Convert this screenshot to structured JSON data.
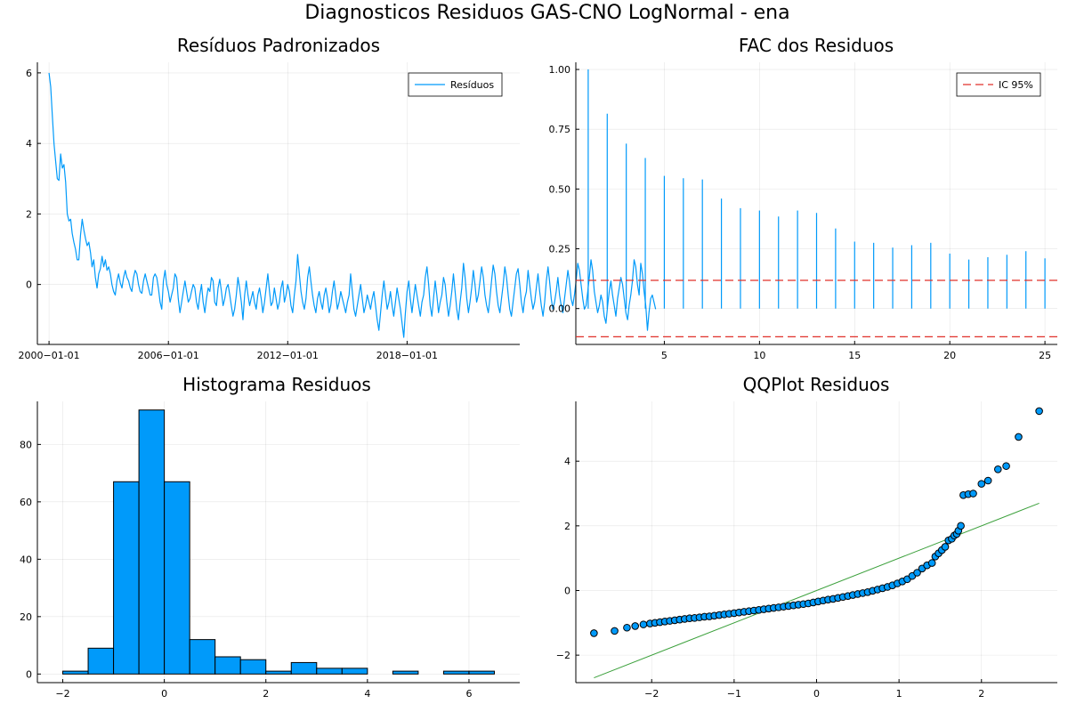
{
  "suptitle": "Diagnosticos Residuos  GAS-CNO LogNormal - ena",
  "chart_data": [
    {
      "id": "residuals",
      "type": "line",
      "title": "Resíduos Padronizados",
      "xlabel": "",
      "ylabel": "",
      "grid": true,
      "legend": "top-right",
      "xticks": [
        "2000-01-01",
        "2006-01-01",
        "2012-01-01",
        "2018-01-01"
      ],
      "yticks": [
        0,
        2,
        4,
        6
      ],
      "xlim": [
        "1999-06-01",
        "2023-09-01"
      ],
      "ylim": [
        -1.7,
        6.3
      ],
      "series": [
        {
          "name": "Resíduos",
          "color": "#009AFA",
          "start": "2000-01-01",
          "freq": "monthly",
          "values": [
            6.0,
            5.6,
            4.8,
            4.0,
            3.5,
            3.0,
            2.95,
            3.7,
            3.3,
            3.4,
            2.9,
            2.0,
            1.8,
            1.85,
            1.45,
            1.2,
            1.0,
            0.7,
            0.7,
            1.4,
            1.85,
            1.55,
            1.3,
            1.1,
            1.2,
            0.9,
            0.5,
            0.7,
            0.2,
            -0.1,
            0.3,
            0.45,
            0.8,
            0.5,
            0.7,
            0.4,
            0.5,
            0.3,
            0.0,
            -0.2,
            -0.3,
            0.1,
            0.3,
            0.05,
            -0.1,
            0.2,
            0.4,
            0.2,
            0.1,
            -0.1,
            -0.2,
            0.2,
            0.4,
            0.3,
            0.0,
            -0.2,
            -0.25,
            0.1,
            0.3,
            0.1,
            -0.1,
            -0.3,
            -0.3,
            0.2,
            0.3,
            0.2,
            -0.1,
            -0.5,
            -0.7,
            0.1,
            0.4,
            0.0,
            -0.2,
            -0.5,
            -0.3,
            -0.1,
            0.3,
            0.2,
            -0.4,
            -0.8,
            -0.5,
            -0.2,
            0.1,
            -0.2,
            -0.5,
            -0.4,
            -0.2,
            0.0,
            -0.1,
            -0.5,
            -0.7,
            -0.3,
            0.0,
            -0.5,
            -0.8,
            -0.4,
            -0.1,
            -0.2,
            0.2,
            0.1,
            -0.5,
            -0.6,
            -0.1,
            0.15,
            -0.2,
            -0.6,
            -0.4,
            -0.1,
            0.0,
            -0.3,
            -0.6,
            -0.9,
            -0.7,
            -0.3,
            0.2,
            -0.1,
            -0.5,
            -1.0,
            -0.3,
            0.1,
            -0.3,
            -0.6,
            -0.4,
            -0.2,
            -0.5,
            -0.7,
            -0.3,
            -0.1,
            -0.4,
            -0.8,
            -0.5,
            -0.1,
            0.3,
            -0.2,
            -0.6,
            -0.5,
            -0.1,
            -0.4,
            -0.7,
            -0.5,
            -0.1,
            0.1,
            -0.5,
            -0.3,
            0.0,
            -0.2,
            -0.6,
            -0.8,
            -0.3,
            0.1,
            0.85,
            0.3,
            -0.2,
            -0.5,
            -0.7,
            -0.4,
            0.2,
            0.5,
            0.1,
            -0.3,
            -0.6,
            -0.8,
            -0.4,
            -0.2,
            -0.5,
            -0.7,
            -0.3,
            -0.1,
            -0.4,
            -0.8,
            -0.6,
            -0.2,
            0.1,
            -0.3,
            -0.7,
            -0.5,
            -0.2,
            -0.4,
            -0.6,
            -0.8,
            -0.5,
            -0.3,
            0.3,
            -0.2,
            -0.7,
            -0.9,
            -0.6,
            -0.3,
            0.0,
            -0.4,
            -0.8,
            -0.6,
            -0.3,
            -0.5,
            -0.7,
            -0.4,
            -0.2,
            -0.6,
            -1.0,
            -1.3,
            -0.8,
            -0.3,
            0.1,
            -0.3,
            -0.7,
            -0.5,
            -0.2,
            -0.6,
            -0.9,
            -0.5,
            -0.1,
            -0.4,
            -0.7,
            -1.1,
            -1.5,
            -0.8,
            -0.2,
            0.1,
            -0.4,
            -0.8,
            -0.4,
            0.0,
            -0.3,
            -0.6,
            -0.9,
            -0.5,
            -0.3,
            0.2,
            0.5,
            0.0,
            -0.6,
            -0.9,
            -0.4,
            0.1,
            -0.3,
            -0.8,
            -0.5,
            -0.3,
            0.2,
            0.0,
            -0.5,
            -0.9,
            -0.6,
            -0.2,
            0.3,
            -0.2,
            -0.7,
            -1.0,
            -0.5,
            -0.1,
            0.6,
            0.2,
            -0.4,
            -0.8,
            -0.5,
            -0.1,
            0.4,
            0.0,
            -0.5,
            -0.3,
            0.1,
            0.5,
            0.2,
            -0.3,
            -0.6,
            -0.8,
            -0.4,
            0.1,
            0.55,
            0.3,
            -0.2,
            -0.6,
            -0.8,
            -0.4,
            0.0,
            0.5,
            0.2,
            -0.3,
            -0.7,
            -0.9,
            -0.5,
            -0.1,
            0.3,
            0.45,
            0.0,
            -0.5,
            -0.8,
            -0.4,
            -0.2,
            0.4,
            0.0,
            -0.4,
            -0.7,
            -0.5,
            -0.1,
            0.3,
            -0.2,
            -0.6,
            -0.9,
            -0.5,
            0.1,
            0.5,
            0.1,
            -0.4,
            -0.7,
            -0.5,
            -0.2,
            0.2,
            -0.3,
            -0.6,
            -0.8,
            -0.4,
            0.0,
            0.4,
            0.1,
            -0.4,
            -0.6,
            -0.3,
            0.1,
            0.6,
            0.4,
            0.0,
            -0.4,
            -0.7,
            -0.6,
            -0.2,
            0.2,
            0.7,
            0.4,
            -0.2,
            -0.5,
            -0.8,
            -0.6,
            -0.3,
            -0.5,
            -0.9,
            -1.1,
            -0.6,
            -0.2,
            0.1,
            -0.3,
            -0.6,
            -0.9,
            -0.4,
            -0.1,
            0.2,
            0.0,
            -0.4,
            -0.8,
            -1.0,
            -0.6,
            -0.3,
            0.1,
            0.7,
            0.5,
            0.0,
            -0.3,
            0.6,
            0.3,
            -0.2,
            -0.6,
            -1.3,
            -0.8,
            -0.4,
            -0.3,
            -0.5,
            -0.7
          ]
        }
      ]
    },
    {
      "id": "acf",
      "type": "bar",
      "title": "FAC dos Residuos",
      "xlabel": "",
      "ylabel": "",
      "grid": true,
      "legend": "top-right",
      "xticks": [
        5,
        10,
        15,
        20,
        25
      ],
      "yticks": [
        0.0,
        0.25,
        0.5,
        0.75,
        1.0
      ],
      "ytick_labels": [
        "0.00",
        "0.25",
        "0.50",
        "0.75",
        "1.00"
      ],
      "xlim": [
        0.35,
        25.65
      ],
      "ylim": [
        -0.15,
        1.03
      ],
      "lags": [
        1,
        2,
        3,
        4,
        5,
        6,
        7,
        8,
        9,
        10,
        11,
        12,
        13,
        14,
        15,
        16,
        17,
        18,
        19,
        20,
        21,
        22,
        23,
        24,
        25
      ],
      "values": [
        1.0,
        0.815,
        0.69,
        0.63,
        0.555,
        0.545,
        0.54,
        0.46,
        0.42,
        0.41,
        0.385,
        0.41,
        0.4,
        0.335,
        0.28,
        0.275,
        0.255,
        0.265,
        0.275,
        0.23,
        0.205,
        0.215,
        0.225,
        0.24,
        0.21
      ],
      "bar_color": "#009AFA",
      "confidence": {
        "name": "IC 95%",
        "upper": 0.118,
        "lower": -0.118,
        "color": "#E0302A",
        "style": "dashed"
      }
    },
    {
      "id": "histogram",
      "type": "bar",
      "title": "Histograma Residuos",
      "xlabel": "",
      "ylabel": "",
      "grid": true,
      "legend": "none",
      "xticks": [
        -2,
        0,
        2,
        4,
        6
      ],
      "yticks": [
        0,
        20,
        40,
        60,
        80
      ],
      "xlim": [
        -2.5,
        7.0
      ],
      "ylim": [
        -3,
        95
      ],
      "bin_edges": [
        -2.0,
        -1.5,
        -1.0,
        -0.5,
        0.0,
        0.5,
        1.0,
        1.5,
        2.0,
        2.5,
        3.0,
        3.5,
        4.0,
        4.5,
        5.0,
        5.5,
        6.0,
        6.5
      ],
      "counts": [
        1,
        9,
        67,
        92,
        67,
        12,
        6,
        5,
        1,
        4,
        2,
        2,
        0,
        1,
        0,
        1,
        1
      ],
      "bar_color": "#009AFA"
    },
    {
      "id": "qqplot",
      "type": "scatter",
      "title": "QQPlot Residuos",
      "xlabel": "",
      "ylabel": "",
      "grid": true,
      "legend": "none",
      "xticks": [
        -2,
        -1,
        0,
        1,
        2
      ],
      "yticks": [
        -2,
        0,
        2,
        4
      ],
      "xlim": [
        -2.92,
        2.92
      ],
      "ylim": [
        -2.85,
        5.85
      ],
      "point_color": "#009AFA",
      "reference_line": {
        "from": [
          -2.7,
          -2.7
        ],
        "to": [
          2.7,
          2.7
        ],
        "color": "#3BA03B"
      },
      "points": [
        [
          -2.7,
          -1.32
        ],
        [
          -2.45,
          -1.25
        ],
        [
          -2.3,
          -1.15
        ],
        [
          -2.2,
          -1.1
        ],
        [
          -2.1,
          -1.05
        ],
        [
          -2.02,
          -1.02
        ],
        [
          -1.96,
          -1.0
        ],
        [
          -1.9,
          -0.98
        ],
        [
          -1.84,
          -0.96
        ],
        [
          -1.78,
          -0.94
        ],
        [
          -1.72,
          -0.92
        ],
        [
          -1.66,
          -0.9
        ],
        [
          -1.6,
          -0.88
        ],
        [
          -1.54,
          -0.86
        ],
        [
          -1.48,
          -0.85
        ],
        [
          -1.42,
          -0.83
        ],
        [
          -1.36,
          -0.81
        ],
        [
          -1.3,
          -0.8
        ],
        [
          -1.24,
          -0.78
        ],
        [
          -1.18,
          -0.76
        ],
        [
          -1.12,
          -0.74
        ],
        [
          -1.06,
          -0.72
        ],
        [
          -1.0,
          -0.7
        ],
        [
          -0.94,
          -0.68
        ],
        [
          -0.88,
          -0.66
        ],
        [
          -0.82,
          -0.64
        ],
        [
          -0.76,
          -0.62
        ],
        [
          -0.7,
          -0.6
        ],
        [
          -0.64,
          -0.58
        ],
        [
          -0.58,
          -0.56
        ],
        [
          -0.52,
          -0.54
        ],
        [
          -0.46,
          -0.52
        ],
        [
          -0.4,
          -0.5
        ],
        [
          -0.34,
          -0.48
        ],
        [
          -0.28,
          -0.46
        ],
        [
          -0.22,
          -0.44
        ],
        [
          -0.16,
          -0.42
        ],
        [
          -0.1,
          -0.4
        ],
        [
          -0.04,
          -0.37
        ],
        [
          0.02,
          -0.34
        ],
        [
          0.08,
          -0.31
        ],
        [
          0.14,
          -0.28
        ],
        [
          0.2,
          -0.26
        ],
        [
          0.26,
          -0.23
        ],
        [
          0.32,
          -0.2
        ],
        [
          0.38,
          -0.17
        ],
        [
          0.44,
          -0.14
        ],
        [
          0.5,
          -0.11
        ],
        [
          0.56,
          -0.08
        ],
        [
          0.62,
          -0.05
        ],
        [
          0.68,
          -0.01
        ],
        [
          0.74,
          0.03
        ],
        [
          0.8,
          0.07
        ],
        [
          0.86,
          0.11
        ],
        [
          0.92,
          0.16
        ],
        [
          0.98,
          0.22
        ],
        [
          1.04,
          0.28
        ],
        [
          1.1,
          0.35
        ],
        [
          1.16,
          0.45
        ],
        [
          1.22,
          0.55
        ],
        [
          1.28,
          0.68
        ],
        [
          1.34,
          0.78
        ],
        [
          1.4,
          0.85
        ],
        [
          1.44,
          1.05
        ],
        [
          1.48,
          1.15
        ],
        [
          1.52,
          1.25
        ],
        [
          1.56,
          1.35
        ],
        [
          1.6,
          1.55
        ],
        [
          1.64,
          1.6
        ],
        [
          1.67,
          1.7
        ],
        [
          1.7,
          1.75
        ],
        [
          1.72,
          1.85
        ],
        [
          1.75,
          2.0
        ],
        [
          1.78,
          2.95
        ],
        [
          1.84,
          2.98
        ],
        [
          1.9,
          3.0
        ],
        [
          2.0,
          3.3
        ],
        [
          2.08,
          3.4
        ],
        [
          2.2,
          3.75
        ],
        [
          2.3,
          3.85
        ],
        [
          2.45,
          4.75
        ],
        [
          2.7,
          5.55
        ]
      ]
    }
  ]
}
